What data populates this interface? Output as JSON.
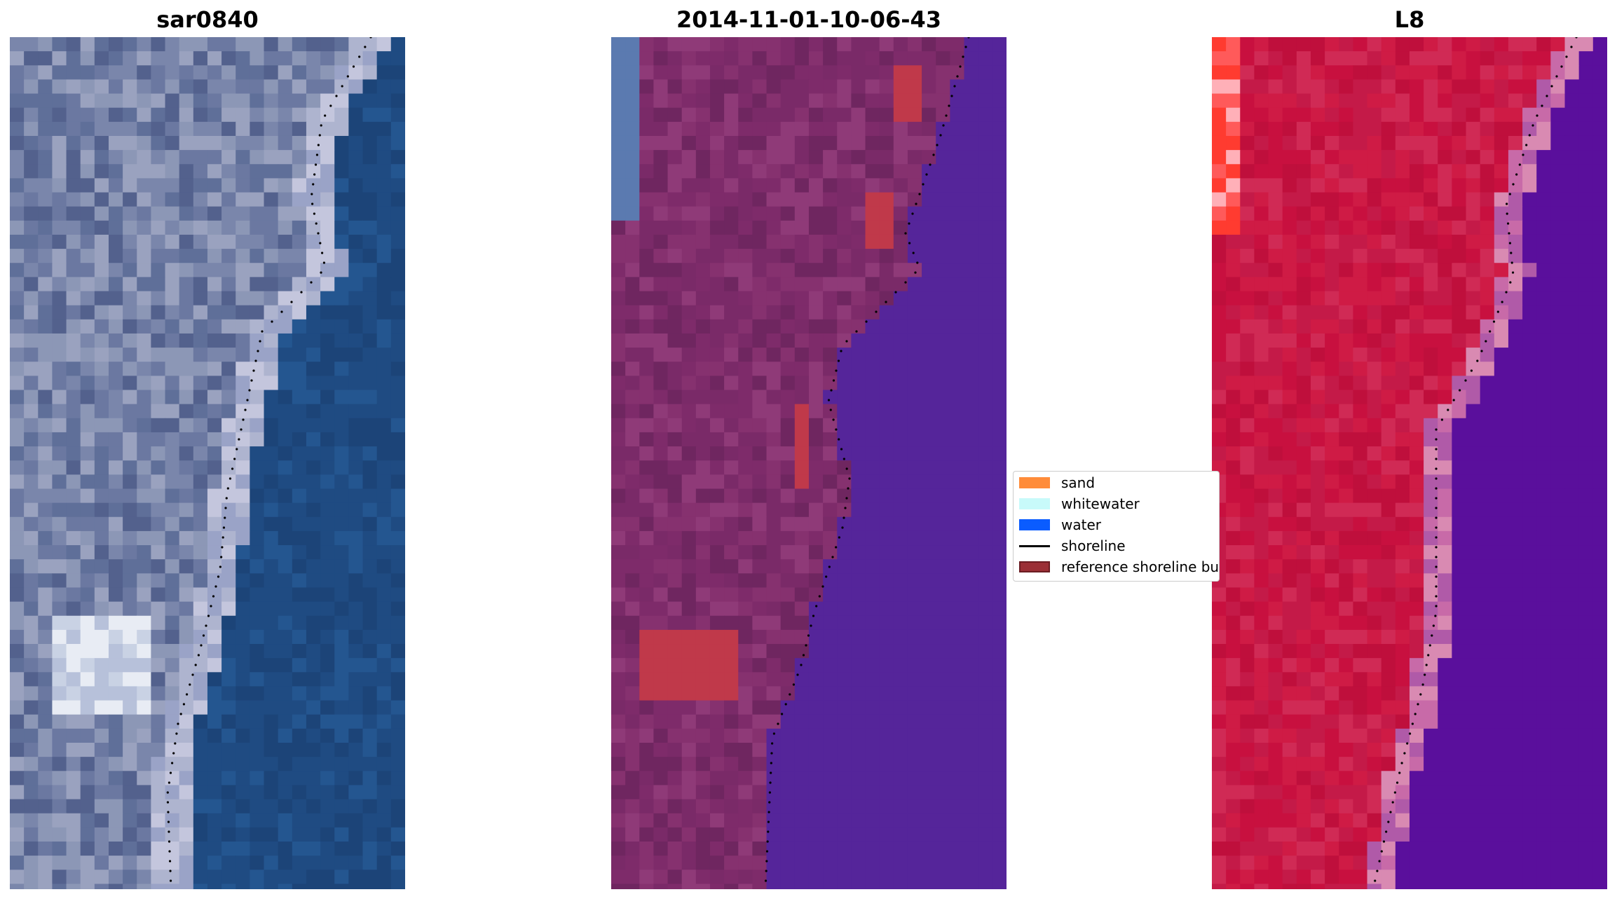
{
  "panels": [
    {
      "title": "sar0840",
      "kind": "rgb",
      "palette": {
        "land": [
          "#5f6f99",
          "#7a86ab",
          "#8c97b6",
          "#6b78a1",
          "#53618d",
          "#9aa2bf"
        ],
        "urban_bright": [
          "#e8ecf4",
          "#c9d2e4",
          "#b7c1da"
        ],
        "beach": [
          "#aeb4cf",
          "#c4c6dd",
          "#9aa3c7"
        ],
        "water": "#1f4b82",
        "water_near": "#245690",
        "water_deep": "#1c4478"
      }
    },
    {
      "title": "2014-11-01-10-06-43",
      "kind": "classified",
      "palette": {
        "land": [
          "#7a2a68",
          "#86316f",
          "#6f2660",
          "#8f3a78",
          "#7e2b6a"
        ],
        "water": "#55259a",
        "buffer": "#c0394a",
        "topleft": "#5b7ab0"
      }
    },
    {
      "title": "L8",
      "kind": "mndwi",
      "palette": {
        "land": [
          "#c8103f",
          "#c41a48",
          "#cf1b45",
          "#bf0f3c",
          "#d02a55"
        ],
        "water": "#5a0f9c",
        "edge": [
          "#d98ab2",
          "#c86aa8",
          "#b05aa8"
        ],
        "hot": [
          "#ff3b30",
          "#ff5a5a",
          "#ffb0b8"
        ]
      }
    }
  ],
  "legend": {
    "entries": [
      {
        "label": "sand",
        "color": "#ff8c3a",
        "shape": "patch"
      },
      {
        "label": "whitewater",
        "color": "#c8fafa",
        "shape": "patch"
      },
      {
        "label": "water",
        "color": "#0a5cff",
        "shape": "patch"
      },
      {
        "label": "shoreline",
        "color": "#000000",
        "shape": "line"
      },
      {
        "label": "reference shoreline buffer",
        "color": "#9b2f36",
        "edge": "#6b1c22",
        "shape": "patch"
      }
    ]
  }
}
